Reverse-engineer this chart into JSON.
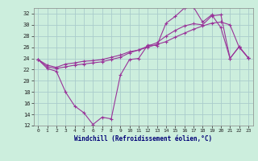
{
  "xlabel": "Windchill (Refroidissement éolien,°C)",
  "bg_color": "#cceedd",
  "grid_color": "#aacccc",
  "line_color": "#993399",
  "xlim": [
    -0.5,
    23.5
  ],
  "ylim": [
    12,
    33
  ],
  "xticks": [
    0,
    1,
    2,
    3,
    4,
    5,
    6,
    7,
    8,
    9,
    10,
    11,
    12,
    13,
    14,
    15,
    16,
    17,
    18,
    19,
    20,
    21,
    22,
    23
  ],
  "yticks": [
    12,
    14,
    16,
    18,
    20,
    22,
    24,
    26,
    28,
    30,
    32
  ],
  "series": [
    [
      23.8,
      22.2,
      21.7,
      18.0,
      15.5,
      14.3,
      12.2,
      13.5,
      13.2,
      21.0,
      23.8,
      24.0,
      26.4,
      26.3,
      30.3,
      31.5,
      33.0,
      33.2,
      30.5,
      31.8,
      29.5,
      24.0,
      26.1,
      24.1
    ],
    [
      23.8,
      22.8,
      22.4,
      23.0,
      23.2,
      23.5,
      23.6,
      23.8,
      24.2,
      24.6,
      25.2,
      25.5,
      26.0,
      26.5,
      27.0,
      27.8,
      28.5,
      29.2,
      29.8,
      30.3,
      30.5,
      30.0,
      26.0,
      24.1
    ],
    [
      23.8,
      22.5,
      22.2,
      22.5,
      22.8,
      23.0,
      23.2,
      23.4,
      23.8,
      24.2,
      25.0,
      25.5,
      26.2,
      26.8,
      28.0,
      29.0,
      29.8,
      30.2,
      30.0,
      31.6,
      31.8,
      24.0,
      26.1,
      24.1
    ]
  ],
  "xlabel_fontsize": 5.5,
  "tick_fontsize": 5,
  "marker_size": 2.0,
  "linewidth": 0.8
}
